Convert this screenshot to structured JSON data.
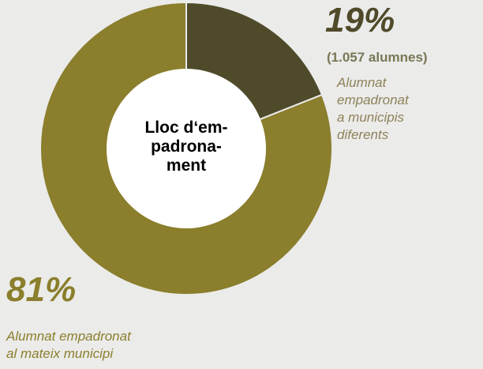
{
  "chart_data": {
    "type": "pie",
    "donut": true,
    "center_label": [
      "Lloc d‘em-",
      "padrona-",
      "ment"
    ],
    "slices": [
      {
        "value": 19,
        "label": "19%",
        "count_label": "(1.057 alumnes)",
        "description": [
          "Alumnat",
          "empadronat",
          "a municipis",
          "diferents"
        ],
        "color": "#4f4a2a",
        "text_color": "#4f4a2a",
        "description_color": "#8d8258"
      },
      {
        "value": 81,
        "label": "81%",
        "description": [
          "Alumnat empadronat",
          "al mateix municipi"
        ],
        "color": "#8b7e2c",
        "text_color": "#8b7e2c",
        "description_color": "#8b7e2c"
      }
    ]
  },
  "colors": {
    "background": "#ebebea",
    "separator": "#ebebea",
    "hole": "#ffffff"
  }
}
